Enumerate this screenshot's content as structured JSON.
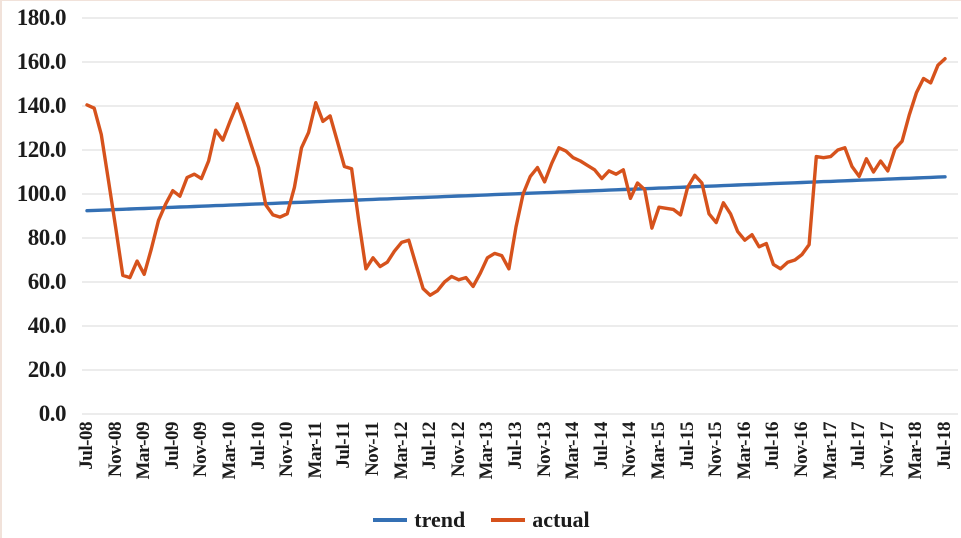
{
  "chart_data": {
    "type": "line",
    "title": "",
    "x_axis": {
      "start": "Jul-08",
      "end": "Jul-18",
      "frequency": "monthly",
      "tick_interval_months": 4,
      "tick_labels": [
        "Jul-08",
        "Nov-08",
        "Mar-09",
        "Jul-09",
        "Nov-09",
        "Mar-10",
        "Jul-10",
        "Nov-10",
        "Mar-11",
        "Jul-11",
        "Nov-11",
        "Mar-12",
        "Jul-12",
        "Nov-12",
        "Mar-13",
        "Jul-13",
        "Nov-13",
        "Mar-14",
        "Jul-14",
        "Nov-14",
        "Mar-15",
        "Jul-15",
        "Nov-15",
        "Mar-16",
        "Jul-16",
        "Nov-16",
        "Mar-17",
        "Jul-17",
        "Nov-17",
        "Mar-18",
        "Jul-18"
      ]
    },
    "y_axis": {
      "min": 0,
      "max": 180,
      "step": 20,
      "tick_labels": [
        "180.0",
        "160.0",
        "140.0",
        "120.0",
        "100.0",
        "80.0",
        "60.0",
        "40.0",
        "20.0",
        "0.0"
      ]
    },
    "grid": "horizontal",
    "gridline_color": "#d8d8d8",
    "legend_position": "bottom-center",
    "series": [
      {
        "name": "trend",
        "color": "#3470B4",
        "shape": "linear",
        "start_value": 92.4,
        "end_value": 107.8
      },
      {
        "name": "actual",
        "color": "#D6521C",
        "values": [
          140.5,
          139,
          127,
          106,
          85,
          63,
          62,
          69.5,
          63.5,
          75,
          88,
          95.5,
          101.5,
          99,
          107.5,
          109,
          107,
          115,
          129,
          124.5,
          133,
          141,
          132,
          122,
          112,
          95,
          90.5,
          89.5,
          91,
          103,
          121,
          128,
          141.5,
          133,
          135.5,
          124,
          112.5,
          111.5,
          88,
          66,
          71,
          67,
          69,
          74,
          78,
          79,
          68,
          57,
          54,
          56,
          60,
          62.5,
          61,
          62,
          58,
          64,
          71,
          73,
          72,
          66,
          85,
          100,
          108,
          112,
          105.5,
          114,
          121,
          119.5,
          116.5,
          115,
          113,
          111,
          107,
          110.5,
          109,
          111,
          98,
          105,
          102,
          84.5,
          94,
          93.5,
          93,
          90.5,
          103,
          108.5,
          105,
          91,
          87,
          96,
          91,
          83,
          79,
          81.5,
          76,
          77.5,
          68,
          66,
          69,
          70,
          72.5,
          77,
          117,
          116.5,
          117,
          120,
          121,
          112.5,
          108,
          116,
          110,
          115,
          110.5,
          120.5,
          124,
          136,
          146,
          152.5,
          150.5,
          158.5,
          161.5
        ]
      }
    ]
  }
}
